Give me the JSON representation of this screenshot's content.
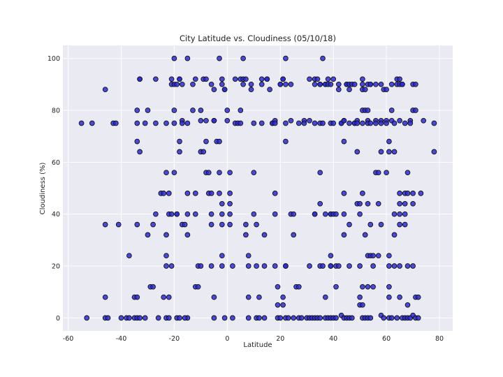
{
  "chart_data": {
    "type": "scatter",
    "title": "City Latitude vs. Cloudiness (05/10/18)",
    "xlabel": "Latitude",
    "ylabel": "Cloudiness (%)",
    "xlim": [
      -62,
      85
    ],
    "ylim": [
      -5,
      105
    ],
    "xticks": [
      -60,
      -40,
      -20,
      0,
      20,
      40,
      60,
      80
    ],
    "yticks": [
      0,
      20,
      40,
      60,
      80,
      100
    ],
    "grid": true,
    "colors": {
      "background": "#eaeaf2",
      "grid": "#ffffff",
      "marker_fill": "#2b2bd9",
      "marker_edge": "#111111"
    },
    "points": [
      [
        -55,
        75
      ],
      [
        -51,
        75
      ],
      [
        -43,
        75
      ],
      [
        -42,
        75
      ],
      [
        -46,
        88
      ],
      [
        -46,
        36
      ],
      [
        -46,
        8
      ],
      [
        -46,
        0
      ],
      [
        -45,
        0
      ],
      [
        -53,
        0
      ],
      [
        -41,
        36
      ],
      [
        -40,
        0
      ],
      [
        -38,
        0
      ],
      [
        -37,
        0
      ],
      [
        -37,
        24
      ],
      [
        -34,
        75
      ],
      [
        -34,
        80
      ],
      [
        -34,
        68
      ],
      [
        -33,
        64
      ],
      [
        -33,
        92
      ],
      [
        -33,
        92
      ],
      [
        -34,
        36
      ],
      [
        -35,
        8
      ],
      [
        -34,
        8
      ],
      [
        -35,
        0
      ],
      [
        -34,
        0
      ],
      [
        -33,
        0
      ],
      [
        -31,
        0
      ],
      [
        -31,
        75
      ],
      [
        -30,
        80
      ],
      [
        -30,
        32
      ],
      [
        -29,
        12
      ],
      [
        -28,
        12
      ],
      [
        -28,
        36
      ],
      [
        -27,
        92
      ],
      [
        -27,
        75
      ],
      [
        -27,
        40
      ],
      [
        -26,
        0
      ],
      [
        -25,
        48
      ],
      [
        -24,
        48
      ],
      [
        -24,
        8
      ],
      [
        -23,
        0
      ],
      [
        -23,
        75
      ],
      [
        -23,
        56
      ],
      [
        -23,
        32
      ],
      [
        -23,
        24
      ],
      [
        -23,
        20
      ],
      [
        -22,
        48
      ],
      [
        -22,
        40
      ],
      [
        -22,
        0
      ],
      [
        -22,
        8
      ],
      [
        -21,
        40
      ],
      [
        -21,
        20
      ],
      [
        -21,
        90
      ],
      [
        -21,
        92
      ],
      [
        -20,
        75
      ],
      [
        -20,
        80
      ],
      [
        -20,
        56
      ],
      [
        -19,
        40
      ],
      [
        -19,
        40
      ],
      [
        -19,
        0
      ],
      [
        -18,
        0
      ],
      [
        -20,
        100
      ],
      [
        -20,
        90
      ],
      [
        -19,
        90
      ],
      [
        -18,
        92
      ],
      [
        -18,
        92
      ],
      [
        -17,
        90
      ],
      [
        -18,
        68
      ],
      [
        -18,
        64
      ],
      [
        -17,
        76
      ],
      [
        -17,
        75
      ],
      [
        -17,
        36
      ],
      [
        -16,
        36
      ],
      [
        -15,
        32
      ],
      [
        -15,
        40
      ],
      [
        -15,
        48
      ],
      [
        -15,
        0
      ],
      [
        -16,
        0
      ],
      [
        -15,
        100
      ],
      [
        -15,
        75
      ],
      [
        -13,
        90
      ],
      [
        -13,
        80
      ],
      [
        -12,
        92
      ],
      [
        -12,
        40
      ],
      [
        -12,
        48
      ],
      [
        -12,
        12
      ],
      [
        -11,
        12
      ],
      [
        -11,
        20
      ],
      [
        -10,
        20
      ],
      [
        -10,
        80
      ],
      [
        -10,
        76
      ],
      [
        -10,
        64
      ],
      [
        -9,
        64
      ],
      [
        -9,
        92
      ],
      [
        -8,
        92
      ],
      [
        -8,
        76
      ],
      [
        -8,
        68
      ],
      [
        -8,
        56
      ],
      [
        -7,
        56
      ],
      [
        -7,
        48
      ],
      [
        -6,
        48
      ],
      [
        -6,
        40
      ],
      [
        -6,
        36
      ],
      [
        -6,
        20
      ],
      [
        -5,
        8
      ],
      [
        -5,
        0
      ],
      [
        -6,
        90
      ],
      [
        -5,
        88
      ],
      [
        -5,
        76
      ],
      [
        -5,
        76
      ],
      [
        -4,
        68
      ],
      [
        -3,
        68
      ],
      [
        -3,
        56
      ],
      [
        -3,
        48
      ],
      [
        -2,
        44
      ],
      [
        -2,
        40
      ],
      [
        -2,
        36
      ],
      [
        -2,
        24
      ],
      [
        -2,
        20
      ],
      [
        -1,
        0
      ],
      [
        -3,
        100
      ],
      [
        -2,
        92
      ],
      [
        -2,
        90
      ],
      [
        -1,
        88
      ],
      [
        -1,
        88
      ],
      [
        0,
        80
      ],
      [
        0,
        76
      ],
      [
        1,
        56
      ],
      [
        1,
        48
      ],
      [
        1,
        44
      ],
      [
        1,
        40
      ],
      [
        1,
        36
      ],
      [
        2,
        20
      ],
      [
        2,
        0
      ],
      [
        3,
        92
      ],
      [
        3,
        75
      ],
      [
        4,
        75
      ],
      [
        5,
        92
      ],
      [
        5,
        80
      ],
      [
        5,
        75
      ],
      [
        6,
        100
      ],
      [
        6,
        92
      ],
      [
        6,
        90
      ],
      [
        7,
        92
      ],
      [
        7,
        36
      ],
      [
        7,
        32
      ],
      [
        8,
        24
      ],
      [
        8,
        20
      ],
      [
        8,
        8
      ],
      [
        8,
        0
      ],
      [
        9,
        90
      ],
      [
        9,
        88
      ],
      [
        10,
        75
      ],
      [
        10,
        56
      ],
      [
        10,
        40
      ],
      [
        11,
        36
      ],
      [
        11,
        20
      ],
      [
        11,
        0
      ],
      [
        12,
        0
      ],
      [
        12,
        8
      ],
      [
        13,
        92
      ],
      [
        13,
        90
      ],
      [
        13,
        75
      ],
      [
        14,
        32
      ],
      [
        14,
        20
      ],
      [
        14,
        0
      ],
      [
        15,
        92
      ],
      [
        15,
        92
      ],
      [
        16,
        88
      ],
      [
        17,
        75
      ],
      [
        17,
        75
      ],
      [
        18,
        76
      ],
      [
        18,
        75
      ],
      [
        18,
        48
      ],
      [
        18,
        40
      ],
      [
        18,
        20
      ],
      [
        19,
        0
      ],
      [
        19,
        12
      ],
      [
        19,
        5
      ],
      [
        20,
        0
      ],
      [
        20,
        90
      ],
      [
        20,
        90
      ],
      [
        21,
        92
      ],
      [
        21,
        92
      ],
      [
        22,
        100
      ],
      [
        22,
        90
      ],
      [
        22,
        75
      ],
      [
        22,
        68
      ],
      [
        22,
        20
      ],
      [
        22,
        20
      ],
      [
        21,
        8
      ],
      [
        21,
        5
      ],
      [
        22,
        0
      ],
      [
        23,
        0
      ],
      [
        24,
        90
      ],
      [
        24,
        76
      ],
      [
        24,
        40
      ],
      [
        25,
        40
      ],
      [
        25,
        32
      ],
      [
        25,
        0
      ],
      [
        26,
        12
      ],
      [
        27,
        12
      ],
      [
        27,
        75
      ],
      [
        27,
        0
      ],
      [
        28,
        0
      ],
      [
        29,
        76
      ],
      [
        29,
        75
      ],
      [
        30,
        0
      ],
      [
        31,
        92
      ],
      [
        31,
        76
      ],
      [
        31,
        20
      ],
      [
        31,
        0
      ],
      [
        32,
        0
      ],
      [
        33,
        92
      ],
      [
        33,
        90
      ],
      [
        33,
        75
      ],
      [
        33,
        40
      ],
      [
        33,
        40
      ],
      [
        33,
        0
      ],
      [
        34,
        0
      ],
      [
        34,
        92
      ],
      [
        35,
        90
      ],
      [
        35,
        90
      ],
      [
        35,
        75
      ],
      [
        35,
        56
      ],
      [
        35,
        44
      ],
      [
        35,
        20
      ],
      [
        35,
        0
      ],
      [
        36,
        100
      ],
      [
        36,
        75
      ],
      [
        36,
        20
      ],
      [
        37,
        90
      ],
      [
        37,
        90
      ],
      [
        37,
        40
      ],
      [
        37,
        8
      ],
      [
        37,
        0
      ],
      [
        38,
        0
      ],
      [
        38,
        92
      ],
      [
        38,
        90
      ],
      [
        39,
        90
      ],
      [
        39,
        75
      ],
      [
        39,
        40
      ],
      [
        39,
        40
      ],
      [
        39,
        24
      ],
      [
        39,
        20
      ],
      [
        39,
        20
      ],
      [
        39,
        0
      ],
      [
        40,
        0
      ],
      [
        40,
        92
      ],
      [
        40,
        75
      ],
      [
        40,
        40
      ],
      [
        41,
        40
      ],
      [
        41,
        20
      ],
      [
        41,
        12
      ],
      [
        41,
        0
      ],
      [
        42,
        20
      ],
      [
        42,
        90
      ],
      [
        42,
        88
      ],
      [
        43,
        75
      ],
      [
        43,
        75
      ],
      [
        43,
        1
      ],
      [
        44,
        0
      ],
      [
        44,
        76
      ],
      [
        44,
        76
      ],
      [
        44,
        68
      ],
      [
        44,
        48
      ],
      [
        44,
        40
      ],
      [
        44,
        32
      ],
      [
        45,
        90
      ],
      [
        45,
        90
      ],
      [
        45,
        0
      ],
      [
        46,
        90
      ],
      [
        46,
        88
      ],
      [
        46,
        75
      ],
      [
        46,
        36
      ],
      [
        46,
        20
      ],
      [
        46,
        0
      ],
      [
        47,
        0
      ],
      [
        47,
        90
      ],
      [
        48,
        90
      ],
      [
        48,
        75
      ],
      [
        48,
        75
      ],
      [
        49,
        76
      ],
      [
        49,
        75
      ],
      [
        49,
        64
      ],
      [
        49,
        44
      ],
      [
        50,
        44
      ],
      [
        50,
        40
      ],
      [
        50,
        20
      ],
      [
        50,
        5
      ],
      [
        50,
        8
      ],
      [
        51,
        0
      ],
      [
        51,
        90
      ],
      [
        51,
        92
      ],
      [
        51,
        88
      ],
      [
        51,
        80
      ],
      [
        51,
        75
      ],
      [
        51,
        48
      ],
      [
        51,
        12
      ],
      [
        51,
        5
      ],
      [
        52,
        0
      ],
      [
        52,
        88
      ],
      [
        52,
        80
      ],
      [
        52,
        32
      ],
      [
        53,
        90
      ],
      [
        53,
        80
      ],
      [
        53,
        76
      ],
      [
        53,
        75
      ],
      [
        53,
        44
      ],
      [
        53,
        24
      ],
      [
        53,
        12
      ],
      [
        53,
        0
      ],
      [
        54,
        0
      ],
      [
        54,
        90
      ],
      [
        54,
        90
      ],
      [
        54,
        75
      ],
      [
        54,
        36
      ],
      [
        54,
        24
      ],
      [
        55,
        24
      ],
      [
        55,
        20
      ],
      [
        55,
        12
      ],
      [
        56,
        90
      ],
      [
        56,
        76
      ],
      [
        56,
        75
      ],
      [
        56,
        56
      ],
      [
        57,
        56
      ],
      [
        57,
        44
      ],
      [
        57,
        24
      ],
      [
        58,
        90
      ],
      [
        58,
        76
      ],
      [
        58,
        75
      ],
      [
        58,
        64
      ],
      [
        58,
        36
      ],
      [
        58,
        1
      ],
      [
        59,
        0
      ],
      [
        59,
        88
      ],
      [
        60,
        88
      ],
      [
        60,
        76
      ],
      [
        60,
        75
      ],
      [
        60,
        56
      ],
      [
        61,
        64
      ],
      [
        61,
        68
      ],
      [
        61,
        24
      ],
      [
        61,
        20
      ],
      [
        61,
        12
      ],
      [
        61,
        8
      ],
      [
        61,
        0
      ],
      [
        62,
        0
      ],
      [
        62,
        90
      ],
      [
        62,
        76
      ],
      [
        62,
        80
      ],
      [
        63,
        75
      ],
      [
        63,
        64
      ],
      [
        63,
        40
      ],
      [
        63,
        32
      ],
      [
        63,
        20
      ],
      [
        64,
        0
      ],
      [
        64,
        90
      ],
      [
        64,
        92
      ],
      [
        65,
        92
      ],
      [
        65,
        90
      ],
      [
        65,
        76
      ],
      [
        65,
        48
      ],
      [
        65,
        44
      ],
      [
        65,
        40
      ],
      [
        65,
        36
      ],
      [
        65,
        20
      ],
      [
        65,
        8
      ],
      [
        66,
        0
      ],
      [
        66,
        90
      ],
      [
        66,
        90
      ],
      [
        67,
        75
      ],
      [
        67,
        48
      ],
      [
        67,
        44
      ],
      [
        67,
        40
      ],
      [
        67,
        36
      ],
      [
        67,
        0
      ],
      [
        68,
        0
      ],
      [
        68,
        56
      ],
      [
        68,
        48
      ],
      [
        68,
        20
      ],
      [
        68,
        5
      ],
      [
        69,
        0
      ],
      [
        69,
        76
      ],
      [
        69,
        75
      ],
      [
        70,
        90
      ],
      [
        70,
        80
      ],
      [
        70,
        48
      ],
      [
        70,
        44
      ],
      [
        70,
        20
      ],
      [
        70,
        1
      ],
      [
        71,
        0
      ],
      [
        71,
        90
      ],
      [
        71,
        80
      ],
      [
        71,
        8
      ],
      [
        72,
        8
      ],
      [
        72,
        0
      ],
      [
        73,
        48
      ],
      [
        74,
        76
      ],
      [
        78,
        64
      ],
      [
        78,
        75
      ]
    ]
  }
}
